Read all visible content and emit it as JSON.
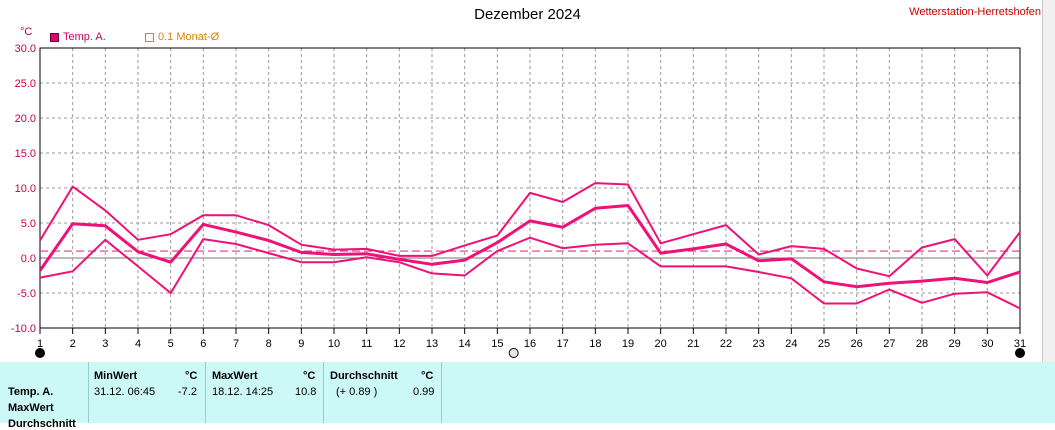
{
  "header": {
    "title": "Dezember 2024",
    "station": "Wetterstation-Herretshofen",
    "unit": "°C"
  },
  "legend": {
    "temp_label": "Temp. A.",
    "monthly_label": "0.1 Monat-Ø"
  },
  "chart_data": {
    "type": "line",
    "title": "Dezember 2024",
    "ylabel": "°C",
    "xlim": [
      1,
      31
    ],
    "ylim": [
      -10,
      30
    ],
    "y_ticks": [
      "30.0",
      "25.0",
      "20.0",
      "15.0",
      "10.0",
      "5.0",
      "0.0",
      "-5.0",
      "-10.0"
    ],
    "x_ticks": [
      "1",
      "2",
      "3",
      "4",
      "5",
      "6",
      "7",
      "8",
      "9",
      "10",
      "11",
      "12",
      "13",
      "14",
      "15",
      "16",
      "17",
      "18",
      "19",
      "20",
      "21",
      "22",
      "23",
      "24",
      "25",
      "26",
      "27",
      "28",
      "29",
      "30",
      "31"
    ],
    "grid": true,
    "x": [
      1,
      2,
      3,
      4,
      5,
      6,
      7,
      8,
      9,
      10,
      11,
      12,
      13,
      14,
      15,
      16,
      17,
      18,
      19,
      20,
      21,
      22,
      23,
      24,
      25,
      26,
      27,
      28,
      29,
      30,
      31
    ],
    "series": [
      {
        "name": "Temp. A.",
        "role": "max",
        "color": "#ee1177",
        "values": [
          2.5,
          10.2,
          6.8,
          2.6,
          3.4,
          6.1,
          6.1,
          4.7,
          1.9,
          1.2,
          1.3,
          0.3,
          0.3,
          1.8,
          3.2,
          9.3,
          8.0,
          10.7,
          10.5,
          2.1,
          3.4,
          4.7,
          0.5,
          1.7,
          1.3,
          -1.5,
          -2.6,
          1.5,
          2.7,
          -2.5,
          3.7
        ]
      },
      {
        "name": "Temp. A.",
        "role": "avg",
        "color": "#ee1177",
        "values": [
          -1.8,
          4.9,
          4.6,
          0.9,
          -0.6,
          4.8,
          3.7,
          2.5,
          0.8,
          0.5,
          0.6,
          -0.2,
          -0.9,
          -0.3,
          2.2,
          5.3,
          4.4,
          7.1,
          7.5,
          0.7,
          1.3,
          2.0,
          -0.4,
          -0.1,
          -3.4,
          -4.1,
          -3.6,
          -3.3,
          -2.9,
          -3.5,
          -2.0
        ]
      },
      {
        "name": "Temp. A.",
        "role": "min",
        "color": "#ee1177",
        "values": [
          -2.8,
          -1.9,
          2.6,
          -1.2,
          -5.0,
          2.7,
          2.0,
          0.7,
          -0.6,
          -0.6,
          0.1,
          -0.6,
          -2.2,
          -2.5,
          1.0,
          2.9,
          1.4,
          1.9,
          2.1,
          -1.2,
          -1.2,
          -1.2,
          -2.0,
          -2.9,
          -6.5,
          -6.5,
          -4.5,
          -6.4,
          -5.1,
          -4.9,
          -7.2
        ]
      }
    ],
    "monthly_mean": 0.99,
    "markers": [
      {
        "day": 1,
        "symbol": "new-moon"
      },
      {
        "day": 15.5,
        "symbol": "full-moon"
      },
      {
        "day": 31,
        "symbol": "new-moon"
      }
    ]
  },
  "stats": {
    "rows": [
      "Temp. A.",
      "MaxWert",
      "Durchschnitt"
    ],
    "min": {
      "header": "MinWert",
      "unit": "°C",
      "datetime": "31.12.  06:45",
      "value": "-7.2"
    },
    "max": {
      "header": "MaxWert",
      "unit": "°C",
      "datetime": "18.12.  14:25",
      "value": "10.8"
    },
    "avg": {
      "header": "Durchschnitt",
      "unit": "°C",
      "diff": "(+ 0.89 )",
      "value": "0.99"
    }
  }
}
